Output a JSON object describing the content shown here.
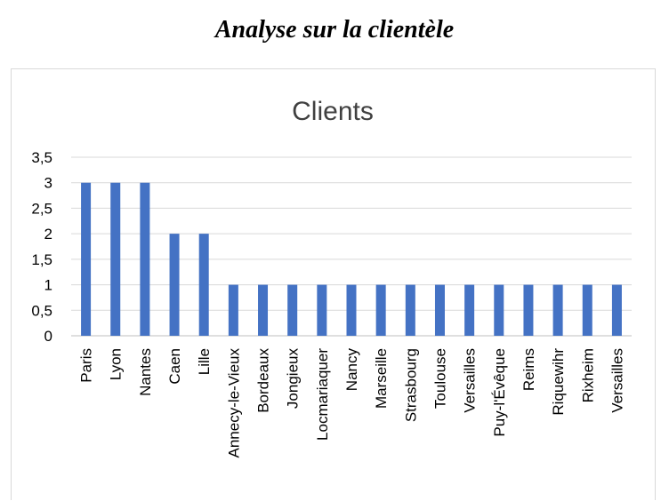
{
  "page": {
    "title": "Analyse sur la clientèle"
  },
  "chart_data": {
    "type": "bar",
    "title": "Clients",
    "xlabel": "",
    "ylabel": "",
    "categories": [
      "Paris",
      "Lyon",
      "Nantes",
      "Caen",
      "Lille",
      "Annecy-le-Vieux",
      "Bordeaux",
      "Jongieux",
      "Locmariaquer",
      "Nancy",
      "Marseille",
      "Strasbourg",
      "Toulouse",
      "Versailles",
      "Puy-l'Évêque",
      "Reims",
      "Riquewihr",
      "Rixheim",
      "Versailles"
    ],
    "values": [
      3,
      3,
      3,
      2,
      2,
      1,
      1,
      1,
      1,
      1,
      1,
      1,
      1,
      1,
      1,
      1,
      1,
      1,
      1
    ],
    "ylim": [
      0,
      3.5
    ],
    "yticks": [
      "0",
      "0,5",
      "1",
      "1,5",
      "2",
      "2,5",
      "3",
      "3,5"
    ],
    "grid": true,
    "legend": "none",
    "colors": {
      "bar": "#4472C4",
      "grid": "#d9d9d9",
      "axis": "#bfbfbf",
      "text": "#000000",
      "title_text": "#404040"
    }
  }
}
